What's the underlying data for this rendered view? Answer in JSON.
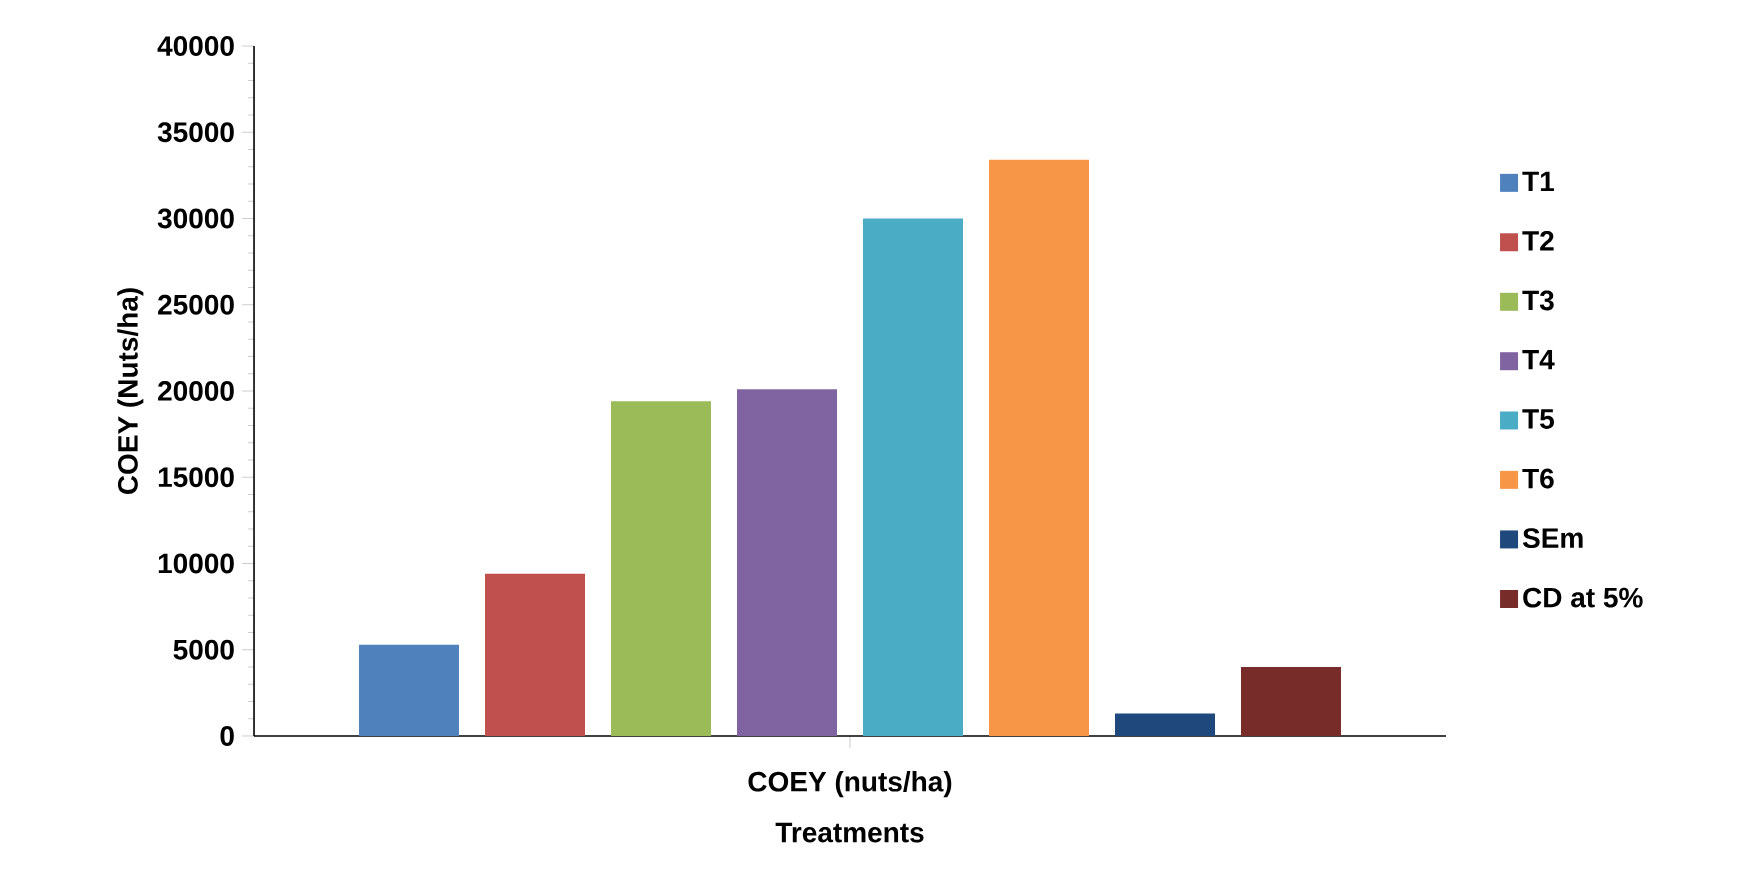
{
  "chart_data": {
    "type": "bar",
    "xlabel": "Treatments",
    "ylabel": "COEY (Nuts/ha)",
    "categories": [
      "COEY (nuts/ha)"
    ],
    "series": [
      {
        "name": "T1",
        "color": "#4f81bd",
        "values": [
          5300
        ]
      },
      {
        "name": "T2",
        "color": "#c0504d",
        "values": [
          9400
        ]
      },
      {
        "name": "T3",
        "color": "#9bbb59",
        "values": [
          19400
        ]
      },
      {
        "name": "T4",
        "color": "#8064a2",
        "values": [
          20100
        ]
      },
      {
        "name": "T5",
        "color": "#4bacc6",
        "values": [
          30000
        ]
      },
      {
        "name": "T6",
        "color": "#f79646",
        "values": [
          33400
        ]
      },
      {
        "name": "SEm",
        "color": "#1f497d",
        "values": [
          1300
        ]
      },
      {
        "name": "CD at 5%",
        "color": "#772c2a",
        "values": [
          4000
        ]
      }
    ],
    "ylim": [
      0,
      40000
    ],
    "yticks": [
      0,
      5000,
      10000,
      15000,
      20000,
      25000,
      30000,
      35000,
      40000
    ],
    "grid": false,
    "legend": "right"
  }
}
